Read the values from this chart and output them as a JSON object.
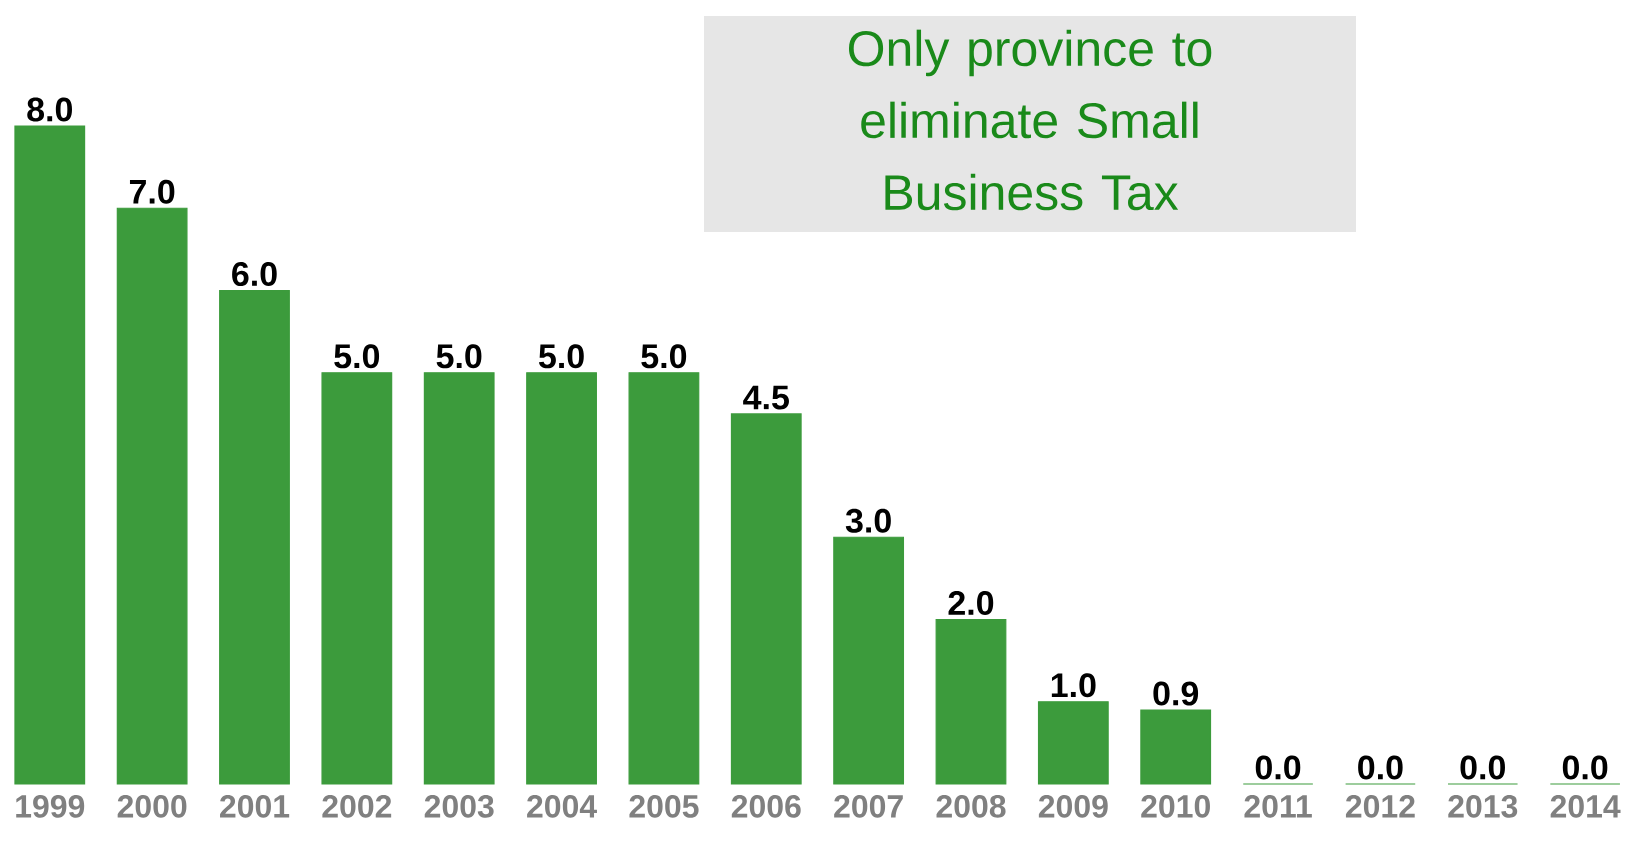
{
  "chart_data": {
    "type": "bar",
    "categories": [
      "1999",
      "2000",
      "2001",
      "2002",
      "2003",
      "2004",
      "2005",
      "2006",
      "2007",
      "2008",
      "2009",
      "2010",
      "2011",
      "2012",
      "2013",
      "2014"
    ],
    "values": [
      8.0,
      7.0,
      6.0,
      5.0,
      5.0,
      5.0,
      5.0,
      4.5,
      3.0,
      2.0,
      1.0,
      0.9,
      0.0,
      0.0,
      0.0,
      0.0
    ],
    "value_labels": [
      "8.0",
      "7.0",
      "6.0",
      "5.0",
      "5.0",
      "5.0",
      "5.0",
      "4.5",
      "3.0",
      "2.0",
      "1.0",
      "0.9",
      "0.0",
      "0.0",
      "0.0",
      "0.0"
    ],
    "color": "#3c9b3c",
    "annotations": [
      "Only province to eliminate  Small Business Tax"
    ]
  }
}
